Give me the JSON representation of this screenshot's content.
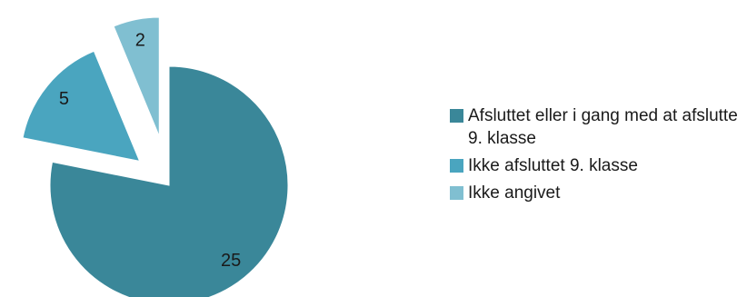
{
  "chart_data": {
    "type": "pie",
    "style": "exploded",
    "categories": [
      "Afsluttet eller i gang med at afslutte 9. klasse",
      "Ikke afsluttet 9. klasse",
      "Ikke angivet"
    ],
    "values": [
      25,
      5,
      2
    ],
    "data_labels": [
      "25",
      "5",
      "2"
    ],
    "colors": [
      "#3a8799",
      "#4aa5bf",
      "#80bfd1"
    ],
    "legend_position": "right"
  }
}
